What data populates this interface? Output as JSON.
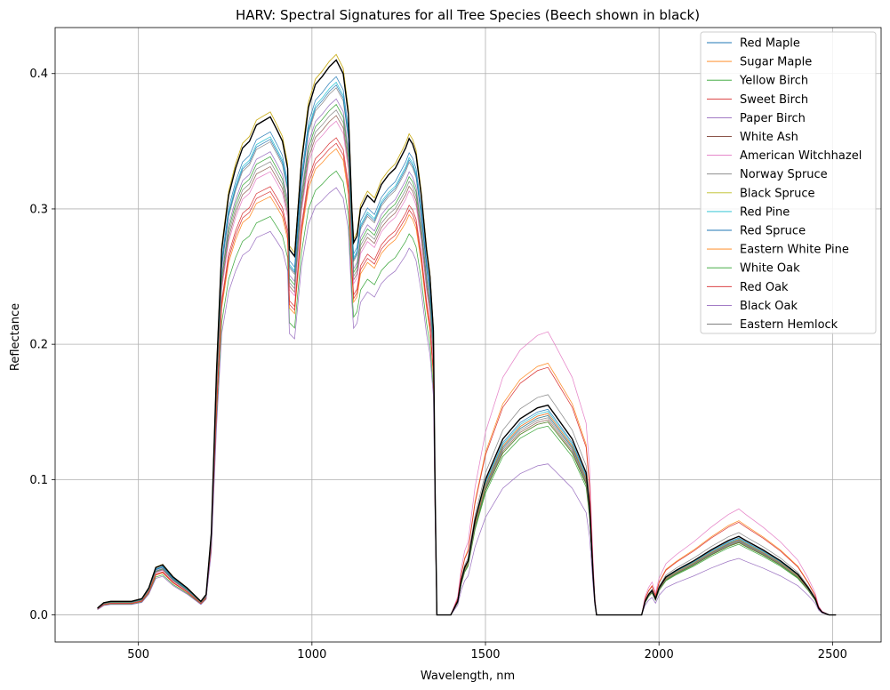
{
  "chart_data": {
    "type": "line",
    "title": "HARV: Spectral Signatures for all Tree Species (Beech shown in black)",
    "xlabel": "Wavelength, nm",
    "ylabel": "Reflectance",
    "xlim": [
      260,
      2640
    ],
    "ylim": [
      -0.02,
      0.434
    ],
    "xticks": [
      500,
      1000,
      1500,
      2000,
      2500
    ],
    "xtick_labels": [
      "500",
      "1000",
      "1500",
      "2000",
      "2500"
    ],
    "yticks": [
      0.0,
      0.1,
      0.2,
      0.3,
      0.4
    ],
    "ytick_labels": [
      "0.0",
      "0.1",
      "0.2",
      "0.3",
      "0.4"
    ],
    "grid": true,
    "legend_position": "top-right",
    "base_profile": {
      "x": [
        382,
        400,
        420,
        450,
        480,
        510,
        530,
        550,
        570,
        600,
        640,
        680,
        695,
        710,
        725,
        740,
        760,
        780,
        800,
        820,
        840,
        860,
        880,
        900,
        915,
        930,
        935,
        950,
        970,
        990,
        1010,
        1030,
        1050,
        1070,
        1090,
        1105,
        1115,
        1120,
        1130,
        1140,
        1160,
        1180,
        1200,
        1220,
        1240,
        1260,
        1270,
        1280,
        1290,
        1300,
        1315,
        1330,
        1340,
        1350,
        1355,
        1360,
        1400,
        1420,
        1430,
        1440,
        1450,
        1470,
        1500,
        1550,
        1600,
        1650,
        1680,
        1700,
        1750,
        1790,
        1800,
        1810,
        1815,
        1820,
        1950,
        1960,
        1970,
        1980,
        1990,
        2000,
        2020,
        2050,
        2100,
        2150,
        2200,
        2230,
        2250,
        2300,
        2350,
        2400,
        2430,
        2450,
        2460,
        2470,
        2480,
        2490,
        2510
      ],
      "y": [
        0.005,
        0.009,
        0.01,
        0.01,
        0.01,
        0.012,
        0.02,
        0.035,
        0.037,
        0.028,
        0.02,
        0.01,
        0.015,
        0.06,
        0.18,
        0.27,
        0.31,
        0.33,
        0.345,
        0.35,
        0.362,
        0.365,
        0.368,
        0.358,
        0.35,
        0.33,
        0.27,
        0.265,
        0.335,
        0.375,
        0.392,
        0.398,
        0.405,
        0.41,
        0.4,
        0.37,
        0.3,
        0.275,
        0.28,
        0.3,
        0.31,
        0.305,
        0.318,
        0.325,
        0.33,
        0.34,
        0.345,
        0.352,
        0.348,
        0.34,
        0.31,
        0.27,
        0.25,
        0.21,
        0.09,
        0.0,
        0.0,
        0.01,
        0.025,
        0.035,
        0.04,
        0.07,
        0.1,
        0.13,
        0.145,
        0.153,
        0.155,
        0.148,
        0.13,
        0.105,
        0.08,
        0.03,
        0.01,
        0.0,
        0.0,
        0.01,
        0.015,
        0.018,
        0.012,
        0.02,
        0.028,
        0.033,
        0.04,
        0.048,
        0.055,
        0.058,
        0.055,
        0.048,
        0.04,
        0.03,
        0.02,
        0.012,
        0.005,
        0.002,
        0.001,
        0.0,
        0.0
      ]
    },
    "series": [
      {
        "name": "Red Maple",
        "color": "#1f77b4",
        "scale": 0.97,
        "swir_scale": 0.98
      },
      {
        "name": "Sugar Maple",
        "color": "#ff7f0e",
        "scale": 1.01,
        "swir_scale": 1.2
      },
      {
        "name": "Yellow Birch",
        "color": "#2ca02c",
        "scale": 0.8,
        "swir_scale": 0.9
      },
      {
        "name": "Sweet Birch",
        "color": "#d62728",
        "scale": 0.86,
        "swir_scale": 0.92
      },
      {
        "name": "Paper Birch",
        "color": "#9467bd",
        "scale": 0.93,
        "swir_scale": 0.96
      },
      {
        "name": "White Ash",
        "color": "#8c564b",
        "scale": 0.9,
        "swir_scale": 0.93
      },
      {
        "name": "American Witchhazel",
        "color": "#e377c2",
        "scale": 0.89,
        "swir_scale": 1.35
      },
      {
        "name": "Norway Spruce",
        "color": "#7f7f7f",
        "scale": 0.95,
        "swir_scale": 1.05
      },
      {
        "name": "Black Spruce",
        "color": "#bcbd22",
        "scale": 1.01,
        "swir_scale": 0.95
      },
      {
        "name": "Red Pine",
        "color": "#17becf",
        "scale": 0.96,
        "swir_scale": 0.97
      },
      {
        "name": "Red Spruce",
        "color": "#1f77b4",
        "scale": 0.955,
        "swir_scale": 0.95
      },
      {
        "name": "Eastern White Pine",
        "color": "#ff7f0e",
        "scale": 0.84,
        "swir_scale": 0.96
      },
      {
        "name": "White Oak",
        "color": "#2ca02c",
        "scale": 0.92,
        "swir_scale": 0.92
      },
      {
        "name": "Red Oak",
        "color": "#d62728",
        "scale": 0.85,
        "swir_scale": 1.18
      },
      {
        "name": "Black Oak",
        "color": "#9467bd",
        "scale": 0.77,
        "swir_scale": 0.72
      },
      {
        "name": "Eastern Hemlock",
        "color": "#7f7f7f",
        "scale": 0.91,
        "swir_scale": 0.94
      }
    ],
    "highlight": {
      "name": "Beech",
      "color": "#000000",
      "scale": 1.0,
      "swir_scale": 1.0
    }
  }
}
